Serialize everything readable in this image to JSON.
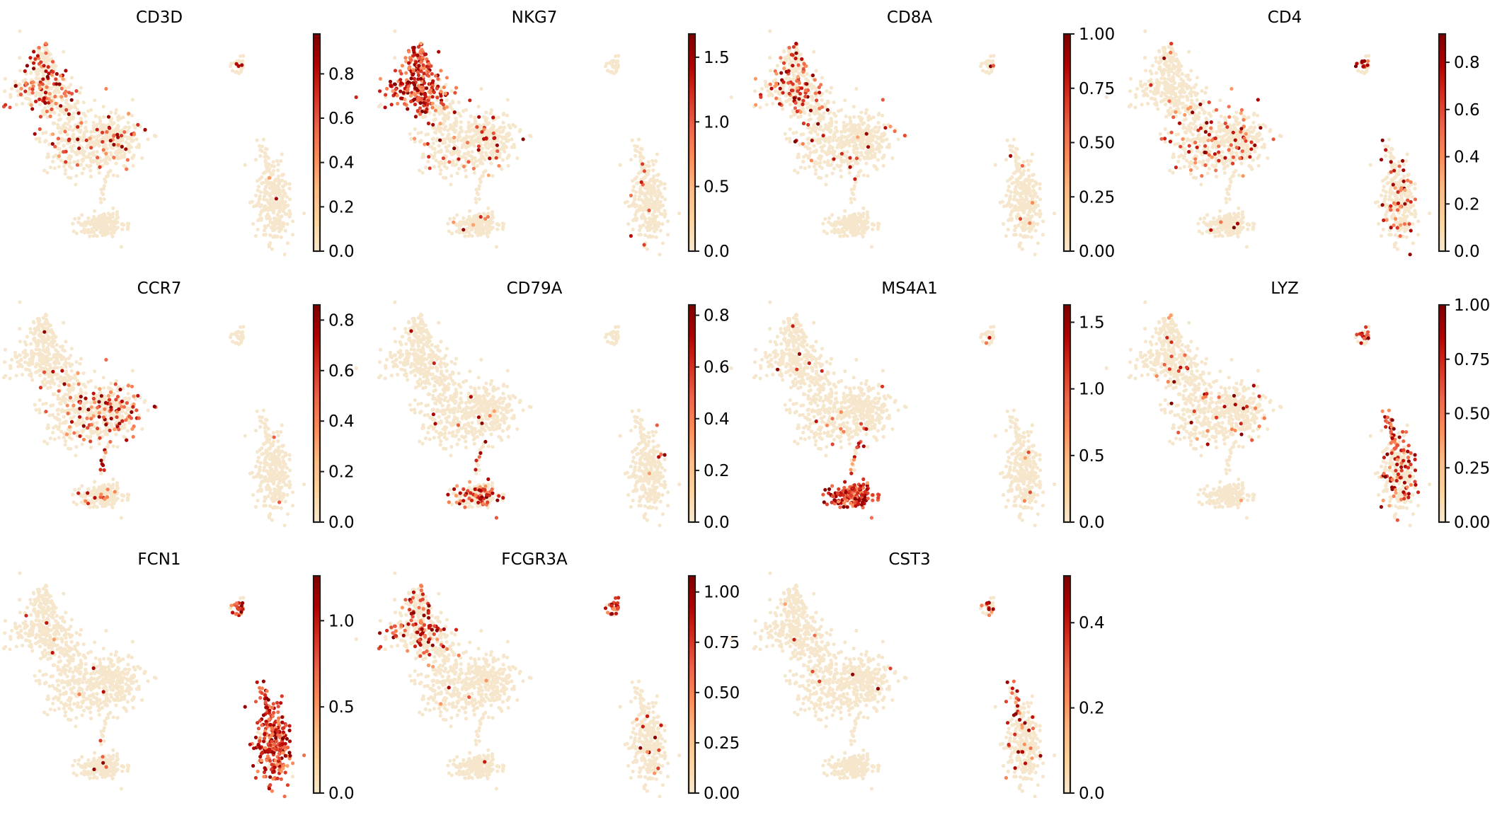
{
  "figure": {
    "description": "UMAP embedding colored by marker gene expression",
    "colormap": "OrRd",
    "colormap_stops": [
      "#f7e8d0",
      "#fdd49e",
      "#fdbb84",
      "#fc8d59",
      "#ef6548",
      "#d7301f",
      "#b30000",
      "#7f0000"
    ],
    "background_point_color": "#f5e6cc",
    "layout": {
      "rows": 3,
      "cols": 4
    }
  },
  "chart_data": [
    {
      "type": "scatter",
      "title": "CD3D",
      "colorbar": {
        "min": 0,
        "max": 0.98,
        "ticks": [
          0.0,
          0.2,
          0.4,
          0.6,
          0.8
        ],
        "tick_labels": [
          "0.0",
          "0.2",
          "0.4",
          "0.6",
          "0.8"
        ]
      },
      "high_expression_clusters": [
        "upper-left",
        "middle"
      ],
      "density": {
        "upper-left": 0.3,
        "middle": 0.12,
        "bcell": 0.02,
        "small": 0.05,
        "mono": 0.03
      }
    },
    {
      "type": "scatter",
      "title": "NKG7",
      "colorbar": {
        "min": 0,
        "max": 1.68,
        "ticks": [
          0.0,
          0.5,
          1.0,
          1.5
        ],
        "tick_labels": [
          "0.0",
          "0.5",
          "1.0",
          "1.5"
        ]
      },
      "high_expression_clusters": [
        "upper-left"
      ],
      "density": {
        "upper-left": 0.85,
        "middle": 0.06,
        "bcell": 0.04,
        "small": 0.0,
        "mono": 0.02
      }
    },
    {
      "type": "scatter",
      "title": "CD8A",
      "colorbar": {
        "min": 0,
        "max": 1.0,
        "ticks": [
          0.0,
          0.25,
          0.5,
          0.75,
          1.0
        ],
        "tick_labels": [
          "0.00",
          "0.25",
          "0.50",
          "0.75",
          "1.00"
        ]
      },
      "high_expression_clusters": [
        "upper-left-lower"
      ],
      "density": {
        "upper-left": 0.25,
        "middle": 0.03,
        "bcell": 0.01,
        "small": 0.05,
        "mono": 0.02
      }
    },
    {
      "type": "scatter",
      "title": "CD4",
      "colorbar": {
        "min": 0,
        "max": 0.92,
        "ticks": [
          0.0,
          0.2,
          0.4,
          0.6,
          0.8
        ],
        "tick_labels": [
          "0.0",
          "0.2",
          "0.4",
          "0.6",
          "0.8"
        ]
      },
      "high_expression_clusters": [
        "middle",
        "mono"
      ],
      "density": {
        "upper-left": 0.01,
        "middle": 0.2,
        "bcell": 0.01,
        "small": 0.4,
        "mono": 0.15
      }
    },
    {
      "type": "scatter",
      "title": "CCR7",
      "colorbar": {
        "min": 0,
        "max": 0.86,
        "ticks": [
          0.0,
          0.2,
          0.4,
          0.6,
          0.8
        ],
        "tick_labels": [
          "0.0",
          "0.2",
          "0.4",
          "0.6",
          "0.8"
        ]
      },
      "high_expression_clusters": [
        "middle-right"
      ],
      "density": {
        "upper-left": 0.01,
        "middle": 0.12,
        "bcell": 0.08,
        "small": 0.0,
        "mono": 0.01
      }
    },
    {
      "type": "scatter",
      "title": "CD79A",
      "colorbar": {
        "min": 0,
        "max": 0.84,
        "ticks": [
          0.0,
          0.2,
          0.4,
          0.6,
          0.8
        ],
        "tick_labels": [
          "0.0",
          "0.2",
          "0.4",
          "0.6",
          "0.8"
        ]
      },
      "high_expression_clusters": [
        "bcell"
      ],
      "density": {
        "upper-left": 0.01,
        "middle": 0.01,
        "bcell": 0.4,
        "small": 0.0,
        "mono": 0.01
      }
    },
    {
      "type": "scatter",
      "title": "MS4A1",
      "colorbar": {
        "min": 0,
        "max": 1.63,
        "ticks": [
          0.0,
          0.5,
          1.0,
          1.5
        ],
        "tick_labels": [
          "0.0",
          "0.5",
          "1.0",
          "1.5"
        ]
      },
      "high_expression_clusters": [
        "bcell"
      ],
      "density": {
        "upper-left": 0.02,
        "middle": 0.02,
        "bcell": 0.95,
        "small": 0.03,
        "mono": 0.01
      }
    },
    {
      "type": "scatter",
      "title": "LYZ",
      "colorbar": {
        "min": 0,
        "max": 1.0,
        "ticks": [
          0.0,
          0.25,
          0.5,
          0.75,
          1.0
        ],
        "tick_labels": [
          "0.00",
          "0.25",
          "0.50",
          "0.75",
          "1.00"
        ]
      },
      "high_expression_clusters": [
        "mono",
        "small"
      ],
      "density": {
        "upper-left": 0.05,
        "middle": 0.05,
        "bcell": 0.01,
        "small": 0.5,
        "mono": 0.3
      }
    },
    {
      "type": "scatter",
      "title": "FCN1",
      "colorbar": {
        "min": 0,
        "max": 1.26,
        "ticks": [
          0.0,
          0.5,
          1.0
        ],
        "tick_labels": [
          "0.0",
          "0.5",
          "1.0"
        ]
      },
      "high_expression_clusters": [
        "mono"
      ],
      "density": {
        "upper-left": 0.01,
        "middle": 0.01,
        "bcell": 0.01,
        "small": 0.6,
        "mono": 0.9
      }
    },
    {
      "type": "scatter",
      "title": "FCGR3A",
      "colorbar": {
        "min": 0,
        "max": 1.08,
        "ticks": [
          0.0,
          0.25,
          0.5,
          0.75,
          1.0
        ],
        "tick_labels": [
          "0.00",
          "0.25",
          "0.50",
          "0.75",
          "1.00"
        ]
      },
      "high_expression_clusters": [
        "upper-left",
        "small"
      ],
      "density": {
        "upper-left": 0.3,
        "middle": 0.01,
        "bcell": 0.01,
        "small": 0.8,
        "mono": 0.03
      }
    },
    {
      "type": "scatter",
      "title": "CST3",
      "colorbar": {
        "min": 0,
        "max": 0.51,
        "ticks": [
          0.0,
          0.2,
          0.4
        ],
        "tick_labels": [
          "0.0",
          "0.2",
          "0.4"
        ]
      },
      "high_expression_clusters": [
        "mono-stalk",
        "small"
      ],
      "density": {
        "upper-left": 0.01,
        "middle": 0.01,
        "bcell": 0.01,
        "small": 0.3,
        "mono": 0.08
      }
    }
  ]
}
